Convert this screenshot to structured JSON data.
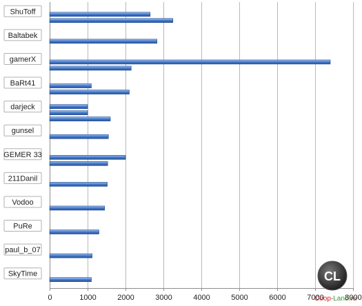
{
  "chart_data": {
    "type": "bar",
    "orientation": "horizontal",
    "title": "",
    "xlabel": "",
    "ylabel": "",
    "xlim": [
      0,
      8000
    ],
    "x_ticks": [
      "0",
      "1000",
      "2000",
      "3000",
      "4000",
      "5000",
      "6000",
      "7000",
      "8000"
    ],
    "grid": true,
    "legend": "none",
    "bar_color": "#3f73c6",
    "groups": [
      {
        "label": "ShuToff",
        "values": [
          2650,
          3250
        ]
      },
      {
        "label": "Baltabek",
        "values": [
          2830
        ]
      },
      {
        "label": "gamerX",
        "values": [
          7400,
          2150
        ]
      },
      {
        "label": "BaRt41",
        "values": [
          1100,
          2100
        ]
      },
      {
        "label": "darjeck",
        "values": [
          1000,
          1000,
          1600
        ]
      },
      {
        "label": "gunsel",
        "values": [
          1550
        ]
      },
      {
        "label": "GEMER 33",
        "values": [
          2000,
          1530
        ]
      },
      {
        "label": "211Danil",
        "values": [
          1520
        ]
      },
      {
        "label": "Vodoo",
        "values": [
          1450
        ]
      },
      {
        "label": "PuRe",
        "values": [
          1300
        ]
      },
      {
        "label": "paul_b_07",
        "values": [
          1120
        ]
      },
      {
        "label": "SkyTime",
        "values": [
          1100
        ]
      }
    ]
  },
  "watermark": {
    "logo_letters": "CL",
    "part1": "Coop-",
    "part2": "Land",
    "part3": ".ru",
    "colors": {
      "part1": "#d01f1f",
      "part2": "#2e9a2e",
      "part3": "#d01f1f"
    }
  }
}
